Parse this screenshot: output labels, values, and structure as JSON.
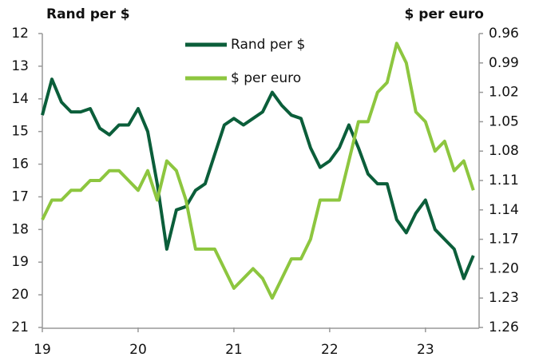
{
  "chart_data": {
    "type": "line",
    "y_label": "Rand per $",
    "y2_label": "$ per euro",
    "x": [
      19.0,
      19.1,
      19.2,
      19.3,
      19.4,
      19.5,
      19.6,
      19.7,
      19.8,
      19.9,
      20.0,
      20.1,
      20.2,
      20.3,
      20.4,
      20.5,
      20.6,
      20.7,
      20.8,
      20.9,
      21.0,
      21.1,
      21.2,
      21.3,
      21.4,
      21.5,
      21.6,
      21.7,
      21.8,
      21.9,
      22.0,
      22.1,
      22.2,
      22.3,
      22.4,
      22.5,
      22.6,
      22.7,
      22.8,
      22.9,
      23.0,
      23.1,
      23.2,
      23.3,
      23.4,
      23.5
    ],
    "series": [
      {
        "name": "Rand per $",
        "color": "#0b5e3a",
        "values": [
          14.5,
          13.4,
          14.1,
          14.4,
          14.4,
          14.3,
          14.9,
          15.1,
          14.8,
          14.8,
          14.3,
          15.0,
          16.6,
          18.6,
          17.4,
          17.3,
          16.8,
          16.6,
          15.7,
          14.8,
          14.6,
          14.8,
          14.6,
          14.4,
          13.8,
          14.2,
          14.5,
          14.6,
          15.5,
          16.1,
          15.9,
          15.5,
          14.8,
          15.5,
          16.3,
          16.6,
          16.6,
          17.7,
          18.1,
          17.5,
          17.1,
          18.0,
          18.3,
          18.6,
          19.5,
          18.8
        ]
      },
      {
        "name": "$ per euro",
        "color": "#8dc63f",
        "axis": "y2",
        "values": [
          1.15,
          1.13,
          1.13,
          1.12,
          1.12,
          1.11,
          1.11,
          1.1,
          1.1,
          1.11,
          1.12,
          1.1,
          1.13,
          1.09,
          1.1,
          1.13,
          1.18,
          1.18,
          1.18,
          1.2,
          1.22,
          1.21,
          1.2,
          1.21,
          1.23,
          1.21,
          1.19,
          1.19,
          1.17,
          1.13,
          1.13,
          1.13,
          1.09,
          1.05,
          1.05,
          1.02,
          1.01,
          0.97,
          0.99,
          1.04,
          1.05,
          1.08,
          1.07,
          1.1,
          1.09,
          1.12
        ]
      }
    ],
    "xlim": [
      19,
      23.56
    ],
    "xticks": [
      19,
      20,
      21,
      22,
      23
    ],
    "ylim": [
      21,
      12
    ],
    "yticks": [
      12,
      13,
      14,
      15,
      16,
      17,
      18,
      19,
      20,
      21
    ],
    "y2lim": [
      1.26,
      0.96
    ],
    "y2ticks": [
      0.96,
      0.99,
      1.02,
      1.05,
      1.08,
      1.11,
      1.14,
      1.17,
      {
        "value": 1.2,
        "label": "1.20"
      },
      1.23,
      1.26
    ],
    "legend": "top"
  }
}
